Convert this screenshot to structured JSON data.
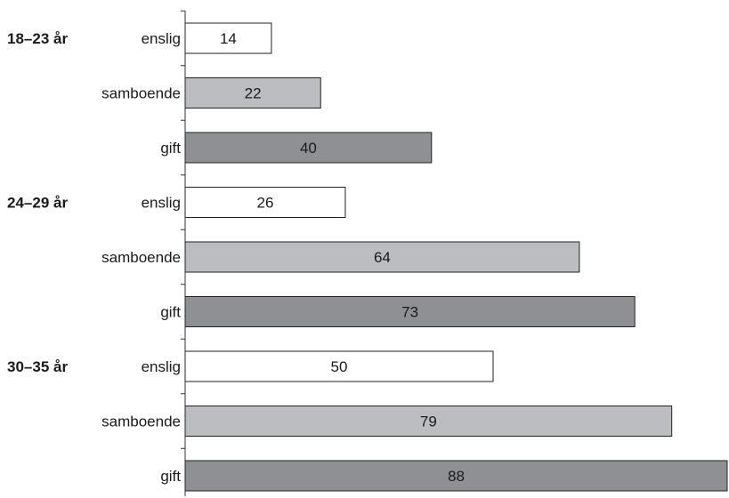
{
  "chart_data": {
    "type": "bar",
    "orientation": "horizontal",
    "title": "",
    "xlabel": "",
    "ylabel": "",
    "xlim": [
      0,
      100
    ],
    "grid": false,
    "legend": "none",
    "groups": [
      {
        "label": "18–23 år",
        "bars": [
          {
            "category": "enslig",
            "value": 14
          },
          {
            "category": "samboende",
            "value": 22
          },
          {
            "category": "gift",
            "value": 40
          }
        ]
      },
      {
        "label": "24–29 år",
        "bars": [
          {
            "category": "enslig",
            "value": 26
          },
          {
            "category": "samboende",
            "value": 64
          },
          {
            "category": "gift",
            "value": 73
          }
        ]
      },
      {
        "label": "30–35 år",
        "bars": [
          {
            "category": "enslig",
            "value": 50
          },
          {
            "category": "samboende",
            "value": 79
          },
          {
            "category": "gift",
            "value": 88
          }
        ]
      }
    ],
    "colors": {
      "enslig": "#ffffff",
      "samboende": "#bcbdc0",
      "gift": "#8f9094"
    }
  }
}
